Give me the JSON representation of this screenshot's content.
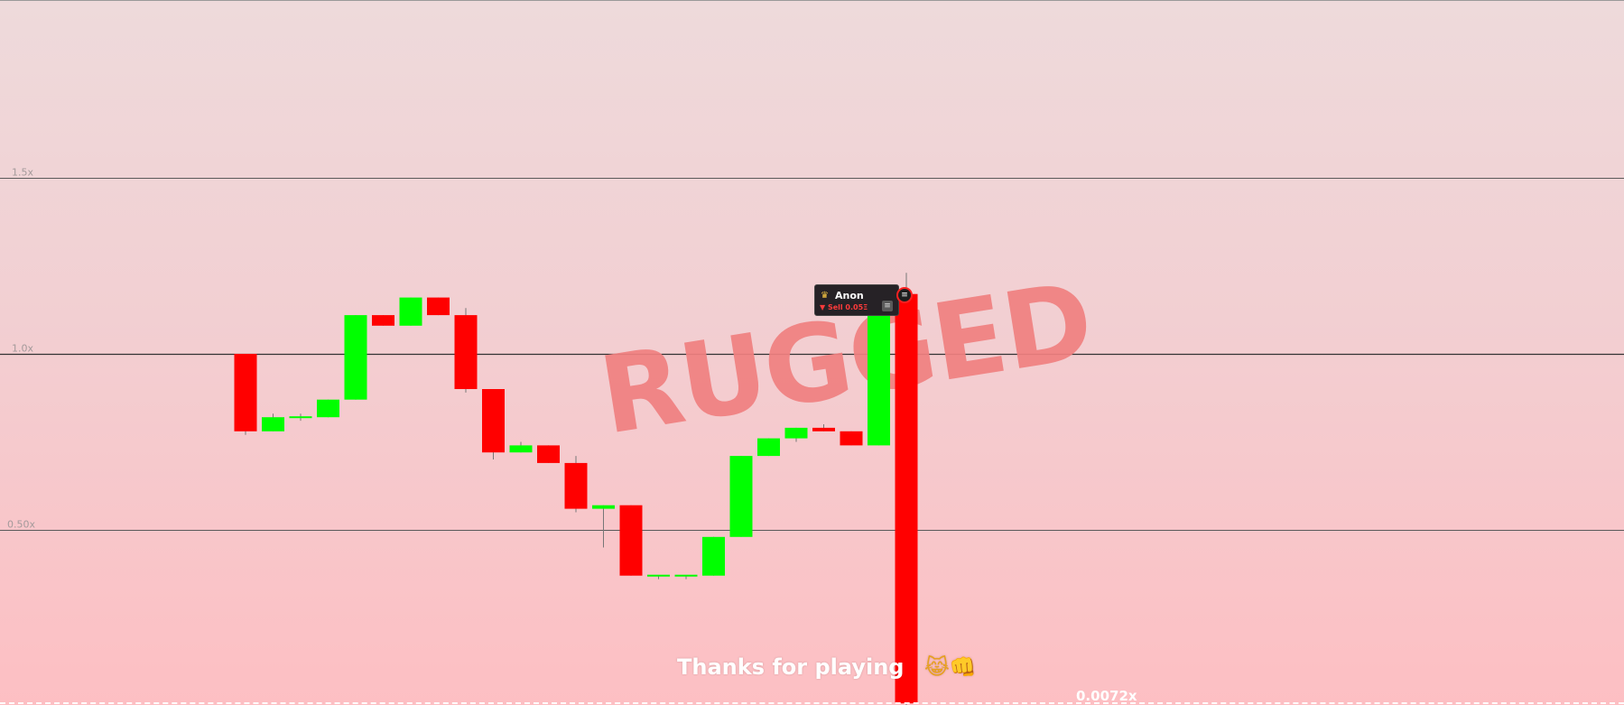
{
  "chart_data": {
    "type": "candlestick",
    "title": "",
    "ylabel": "",
    "xlabel": "",
    "y_axis_labels": [
      "1.5x",
      "1.0x",
      "0.50x"
    ],
    "y_gridlines": [
      1.5,
      1.0,
      0.5
    ],
    "grid": true,
    "ylim": [
      -0.02,
      2.0
    ],
    "candles": [
      {
        "open": 1.0,
        "close": 0.78,
        "high": 1.0,
        "low": 0.77
      },
      {
        "open": 0.78,
        "close": 0.82,
        "high": 0.83,
        "low": 0.78
      },
      {
        "open": 0.82,
        "close": 0.82,
        "high": 0.83,
        "low": 0.81
      },
      {
        "open": 0.82,
        "close": 0.87,
        "high": 0.87,
        "low": 0.82
      },
      {
        "open": 0.87,
        "close": 1.11,
        "high": 1.11,
        "low": 0.87
      },
      {
        "open": 1.11,
        "close": 1.08,
        "high": 1.11,
        "low": 1.08
      },
      {
        "open": 1.08,
        "close": 1.16,
        "high": 1.16,
        "low": 1.08
      },
      {
        "open": 1.16,
        "close": 1.11,
        "high": 1.16,
        "low": 1.11
      },
      {
        "open": 1.11,
        "close": 0.9,
        "high": 1.13,
        "low": 0.89
      },
      {
        "open": 0.9,
        "close": 0.72,
        "high": 0.9,
        "low": 0.7
      },
      {
        "open": 0.72,
        "close": 0.74,
        "high": 0.75,
        "low": 0.72
      },
      {
        "open": 0.74,
        "close": 0.69,
        "high": 0.74,
        "low": 0.69
      },
      {
        "open": 0.69,
        "close": 0.56,
        "high": 0.71,
        "low": 0.55
      },
      {
        "open": 0.56,
        "close": 0.57,
        "high": 0.57,
        "low": 0.45
      },
      {
        "open": 0.57,
        "close": 0.37,
        "high": 0.57,
        "low": 0.37
      },
      {
        "open": 0.37,
        "close": 0.37,
        "high": 0.37,
        "low": 0.36
      },
      {
        "open": 0.37,
        "close": 0.37,
        "high": 0.37,
        "low": 0.36
      },
      {
        "open": 0.37,
        "close": 0.48,
        "high": 0.48,
        "low": 0.37
      },
      {
        "open": 0.48,
        "close": 0.71,
        "high": 0.71,
        "low": 0.48
      },
      {
        "open": 0.71,
        "close": 0.76,
        "high": 0.76,
        "low": 0.71
      },
      {
        "open": 0.76,
        "close": 0.79,
        "high": 0.79,
        "low": 0.75
      },
      {
        "open": 0.79,
        "close": 0.78,
        "high": 0.8,
        "low": 0.78
      },
      {
        "open": 0.78,
        "close": 0.74,
        "high": 0.78,
        "low": 0.74
      },
      {
        "open": 0.74,
        "close": 1.17,
        "high": 1.17,
        "low": 0.74
      },
      {
        "open": 1.17,
        "close": 0.0072,
        "high": 1.23,
        "low": 0.0
      }
    ],
    "colors": {
      "up": "#00ff00",
      "down": "#ff0000",
      "gridline": "#5a5a5a",
      "baseline": "#333333"
    }
  },
  "overlay": {
    "rugged_text": "RUGGED",
    "thanks_text": "Thanks for playing",
    "emoji_icons": "😹👊",
    "price_readout": "0.0072x"
  },
  "player_tag": {
    "crown_icon": "crown-icon",
    "name": "Anon",
    "action": "▼ Sell 0.05Ξ",
    "token_symbol": "≡"
  },
  "marker": {
    "symbol": "≡",
    "border_color": "#ff2020"
  }
}
